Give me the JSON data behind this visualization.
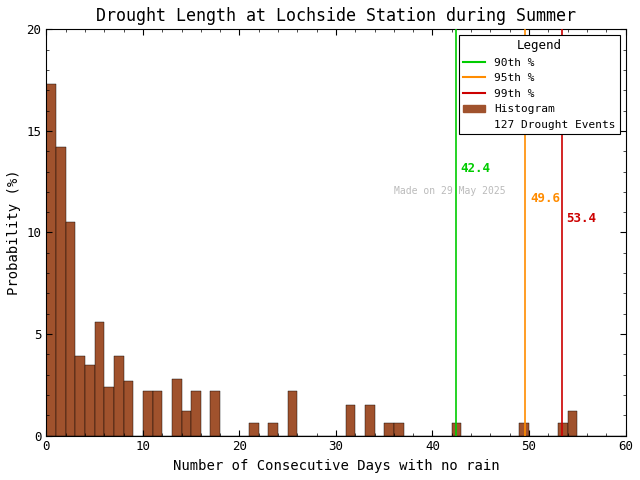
{
  "title": "Drought Length at Lochside Station during Summer",
  "xlabel": "Number of Consecutive Days with no rain",
  "ylabel": "Probability (%)",
  "xlim": [
    0,
    60
  ],
  "ylim": [
    0,
    20
  ],
  "xticks": [
    0,
    10,
    20,
    30,
    40,
    50,
    60
  ],
  "yticks": [
    0,
    5,
    10,
    15,
    20
  ],
  "bar_color": "#A0522D",
  "bar_edgecolor": "#000000",
  "bin_edges": [
    1,
    2,
    3,
    4,
    5,
    6,
    7,
    8,
    9,
    10,
    11,
    12,
    13,
    14,
    15,
    16,
    17,
    18,
    19,
    20,
    21,
    22,
    23,
    24,
    25,
    26,
    27,
    28,
    29,
    30,
    31,
    32,
    33,
    34,
    35,
    36,
    37,
    38,
    39,
    40,
    41,
    42,
    43,
    44,
    45,
    46,
    47,
    48,
    49,
    50,
    51,
    52,
    53,
    54,
    55,
    56,
    57,
    58,
    59,
    60
  ],
  "bar_heights": [
    17.3,
    14.2,
    10.5,
    3.9,
    3.5,
    5.6,
    2.4,
    3.9,
    2.7,
    0.0,
    2.2,
    2.2,
    0.0,
    2.8,
    1.2,
    2.2,
    0.0,
    2.2,
    0.0,
    0.0,
    0.0,
    0.6,
    0.0,
    0.6,
    0.0,
    2.2,
    0.0,
    0.0,
    0.0,
    0.0,
    0.0,
    1.5,
    0.0,
    1.5,
    0.0,
    0.6,
    0.6,
    0.0,
    0.0,
    0.0,
    0.0,
    0.0,
    0.6,
    0.0,
    0.0,
    0.0,
    0.0,
    0.0,
    0.0,
    0.6,
    0.0,
    0.0,
    0.0,
    0.6,
    1.2,
    0.0,
    0.0,
    0.0,
    0.0,
    0.0
  ],
  "percentile_90": 42.4,
  "percentile_95": 49.6,
  "percentile_99": 53.4,
  "color_90": "#00CC00",
  "color_95": "#FF8C00",
  "color_99": "#CC0000",
  "label_90": "42.4",
  "label_95": "49.6",
  "label_99": "53.4",
  "n_events": 127,
  "watermark": "Made on 29 May 2025",
  "watermark_color": "#BBBBBB",
  "legend_title": "Legend",
  "legend_90": "90th %",
  "legend_95": "95th %",
  "legend_99": "99th %",
  "legend_hist": "Histogram",
  "legend_events": "127 Drought Events",
  "background_color": "#FFFFFF",
  "ann_90_y": 13.0,
  "ann_95_y": 11.5,
  "ann_99_y": 10.5
}
